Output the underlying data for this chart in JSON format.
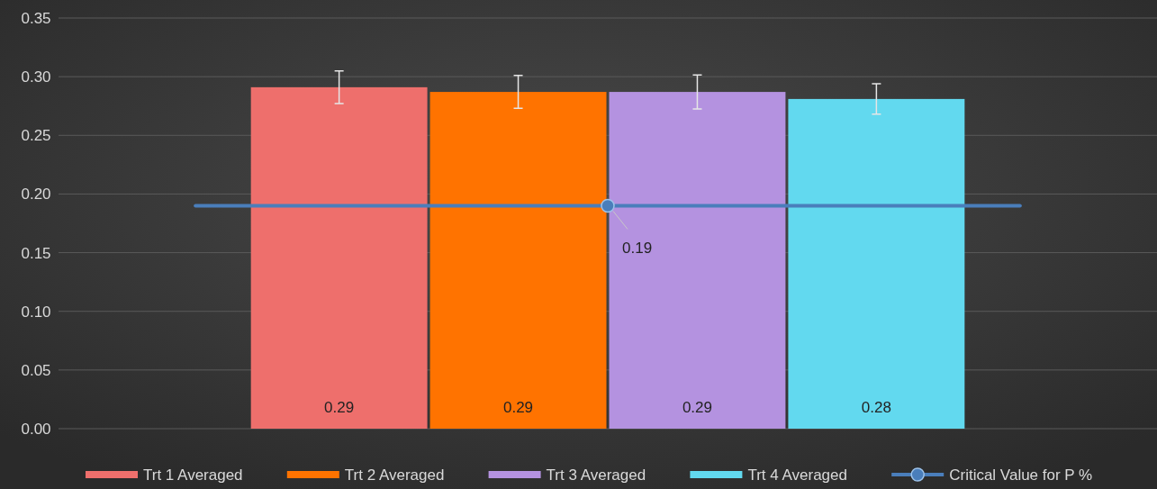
{
  "chart_data": {
    "type": "bar",
    "categories": [
      null
    ],
    "series": [
      {
        "name": "Trt 1 Averaged",
        "color": "#ee6f6c",
        "values": [
          0.291
        ],
        "errors": [
          0.014
        ],
        "value_labels": [
          "0.29"
        ]
      },
      {
        "name": "Trt 2 Averaged",
        "color": "#ff7300",
        "values": [
          0.287
        ],
        "errors": [
          0.014
        ],
        "value_labels": [
          "0.29"
        ]
      },
      {
        "name": "Trt 3 Averaged",
        "color": "#b492e0",
        "values": [
          0.287
        ],
        "errors": [
          0.0145
        ],
        "value_labels": [
          "0.29"
        ]
      },
      {
        "name": "Trt 4 Averaged",
        "color": "#62d9ef",
        "values": [
          0.281
        ],
        "errors": [
          0.013
        ],
        "value_labels": [
          "0.28"
        ]
      }
    ],
    "ref_lines": [
      {
        "axis": "y",
        "value": 0.19,
        "label": "Critical Value for P %",
        "color": "#4a7ebb"
      }
    ],
    "annotations": [
      {
        "text": "0.19",
        "y": 0.19
      }
    ],
    "ylim": [
      0,
      0.35
    ],
    "yticks": [
      {
        "value": 0,
        "label": "0.00"
      },
      {
        "value": 0.05,
        "label": "0.05"
      },
      {
        "value": 0.1,
        "label": "0.10"
      },
      {
        "value": 0.15,
        "label": "0.15"
      },
      {
        "value": 0.2,
        "label": "0.20"
      },
      {
        "value": 0.25,
        "label": "0.25"
      },
      {
        "value": 0.3,
        "label": "0.30"
      },
      {
        "value": 0.35,
        "label": "0.35"
      }
    ],
    "grid": "y",
    "legend": "bottom",
    "marker": "circle"
  }
}
